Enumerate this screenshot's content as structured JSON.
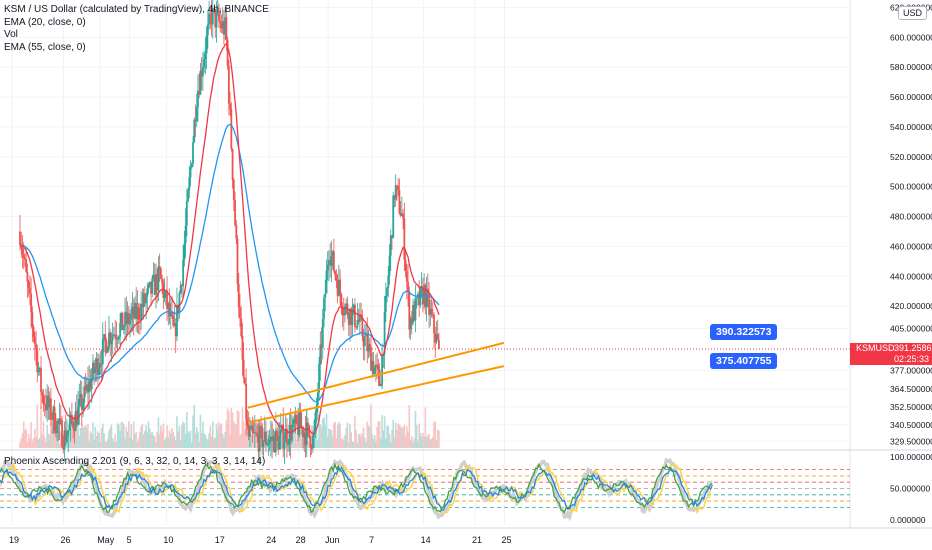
{
  "legend": {
    "line1": "KSM / US Dollar (calculated by TradingView), 4h, BINANCE",
    "line2": "EMA (20, close, 0)",
    "line3": "Vol",
    "line4": "EMA (55, close, 0)"
  },
  "oscillator": {
    "title": "Phoenix Ascending 2.201 (9, 6, 3, 32, 0, 14, 3, 3, 3, 14, 14)"
  },
  "currency_badge": "USD",
  "symbol_badge": {
    "symbol": "KSMUSD",
    "price": "391.258665",
    "countdown": "02:25:33"
  },
  "callouts": {
    "upper": "390.322573",
    "lower": "375.407755"
  },
  "colors": {
    "up": "#26a69a",
    "down": "#ef5350",
    "ema20": "#f23645",
    "ema55": "#2196f3",
    "trendline": "#ff9800",
    "callout": "#2962ff",
    "price_line": "#f23645"
  },
  "chart_data": [
    {
      "type": "candlestick",
      "title": "KSM / US Dollar (calculated by TradingView), 4h, BINANCE",
      "xlabel": "",
      "ylabel": "",
      "x_tick_labels": [
        "19",
        "26",
        "May",
        "5",
        "10",
        "17",
        "24",
        "28",
        "Jun",
        "7",
        "14",
        "21",
        "25"
      ],
      "y_tick_labels": [
        "620.000000",
        "600.000000",
        "580.000000",
        "560.000000",
        "540.000000",
        "520.000000",
        "500.000000",
        "480.000000",
        "460.000000",
        "440.000000",
        "420.000000",
        "405.000000",
        "377.000000",
        "364.500000",
        "352.500000",
        "340.500000",
        "329.500000"
      ],
      "ylim": [
        325,
        625
      ],
      "last_price": 391.258665,
      "key_prices": [
        {
          "x": "Apr 19",
          "price": 470
        },
        {
          "x": "Apr 22",
          "price": 360
        },
        {
          "x": "Apr 25",
          "price": 332
        },
        {
          "x": "Apr 27",
          "price": 350
        },
        {
          "x": "May 1",
          "price": 400
        },
        {
          "x": "May 5",
          "price": 415
        },
        {
          "x": "May 8",
          "price": 440
        },
        {
          "x": "May 10",
          "price": 400
        },
        {
          "x": "May 11",
          "price": 440
        },
        {
          "x": "May 13",
          "price": 560
        },
        {
          "x": "May 15",
          "price": 615
        },
        {
          "x": "May 17",
          "price": 605
        },
        {
          "x": "May 19",
          "price": 400
        },
        {
          "x": "May 20",
          "price": 332
        },
        {
          "x": "May 24",
          "price": 330
        },
        {
          "x": "May 27",
          "price": 340
        },
        {
          "x": "May 29",
          "price": 330
        },
        {
          "x": "May 31",
          "price": 460
        },
        {
          "x": "Jun 2",
          "price": 420
        },
        {
          "x": "Jun 4",
          "price": 410
        },
        {
          "x": "Jun 7",
          "price": 368
        },
        {
          "x": "Jun 9",
          "price": 500
        },
        {
          "x": "Jun 10",
          "price": 480
        },
        {
          "x": "Jun 11",
          "price": 410
        },
        {
          "x": "Jun 13",
          "price": 430
        },
        {
          "x": "Jun 15",
          "price": 391
        }
      ],
      "series": [
        {
          "name": "EMA (20, close, 0)"
        },
        {
          "name": "EMA (55, close, 0)"
        },
        {
          "name": "Vol"
        }
      ],
      "trendlines": [
        {
          "from": {
            "x": "May 20",
            "price": 352
          },
          "to": {
            "x": "Jun 15",
            "price": 390.322573
          }
        },
        {
          "from": {
            "x": "May 20",
            "price": 342
          },
          "to": {
            "x": "Jun 15",
            "price": 375.407755
          }
        }
      ],
      "grid": true,
      "legend_position": "top-left"
    },
    {
      "type": "line",
      "title": "Phoenix Ascending 2.201 (9, 6, 3, 32, 0, 14, 3, 3, 3, 14, 14)",
      "y_tick_labels": [
        "100.000000",
        "50.000000",
        "0.000000"
      ],
      "ylim": [
        -8,
        108
      ],
      "reference_levels": [
        80,
        70,
        60,
        50,
        40,
        30,
        20
      ]
    }
  ]
}
